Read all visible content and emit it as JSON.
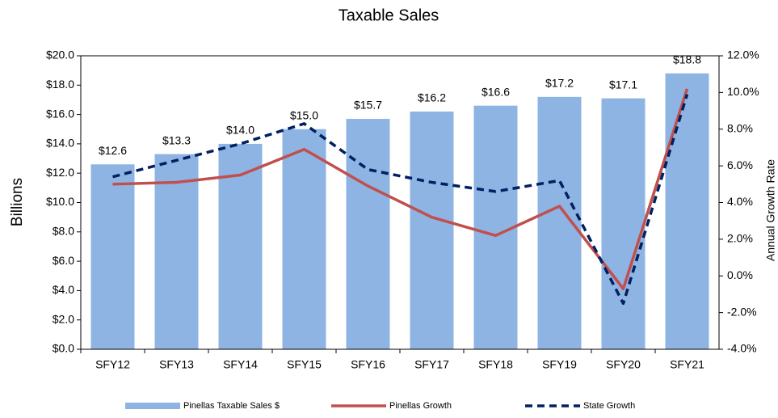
{
  "chart_data": {
    "type": "bar",
    "title": "Taxable Sales",
    "ylabel": "Billions",
    "y2label": "Annual Growth Rate",
    "categories": [
      "SFY12",
      "SFY13",
      "SFY14",
      "SFY15",
      "SFY16",
      "SFY17",
      "SFY18",
      "SFY19",
      "SFY20",
      "SFY21"
    ],
    "series": [
      {
        "name": "Pinellas Taxable Sales $",
        "type": "bar",
        "color": "#8eb4e3",
        "axis": "y",
        "values": [
          12.6,
          13.3,
          14.0,
          15.0,
          15.7,
          16.2,
          16.6,
          17.2,
          17.1,
          18.8
        ],
        "value_labels": [
          "$12.6",
          "$13.3",
          "$14.0",
          "$15.0",
          "$15.7",
          "$16.2",
          "$16.6",
          "$17.2",
          "$17.1",
          "$18.8"
        ]
      },
      {
        "name": "Pinellas Growth",
        "type": "line",
        "color": "#c0504d",
        "dashed": false,
        "axis": "y2",
        "values": [
          5.0,
          5.1,
          5.5,
          6.9,
          4.9,
          3.2,
          2.2,
          3.8,
          -0.7,
          10.2
        ]
      },
      {
        "name": "State Growth",
        "type": "line",
        "color": "#002060",
        "dashed": true,
        "axis": "y2",
        "values": [
          5.4,
          6.3,
          7.2,
          8.3,
          5.8,
          5.1,
          4.6,
          5.2,
          -1.5,
          9.9
        ]
      }
    ],
    "ylim": [
      0,
      20
    ],
    "yticks": [
      {
        "value": 0,
        "label": "$0.0"
      },
      {
        "value": 2,
        "label": "$2.0"
      },
      {
        "value": 4,
        "label": "$4.0"
      },
      {
        "value": 6,
        "label": "$6.0"
      },
      {
        "value": 8,
        "label": "$8.0"
      },
      {
        "value": 10,
        "label": "$10.0"
      },
      {
        "value": 12,
        "label": "$12.0"
      },
      {
        "value": 14,
        "label": "$14.0"
      },
      {
        "value": 16,
        "label": "$16.0"
      },
      {
        "value": 18,
        "label": "$18.0"
      },
      {
        "value": 20,
        "label": "$20.0"
      }
    ],
    "y2lim": [
      -4,
      12
    ],
    "y2ticks": [
      {
        "value": -4,
        "label": "-4.0%"
      },
      {
        "value": -2,
        "label": "-2.0%"
      },
      {
        "value": 0,
        "label": "0.0%"
      },
      {
        "value": 2,
        "label": "2.0%"
      },
      {
        "value": 4,
        "label": "4.0%"
      },
      {
        "value": 6,
        "label": "6.0%"
      },
      {
        "value": 8,
        "label": "8.0%"
      },
      {
        "value": 10,
        "label": "10.0%"
      },
      {
        "value": 12,
        "label": "12.0%"
      }
    ],
    "grid": false,
    "legend": "bottom"
  }
}
